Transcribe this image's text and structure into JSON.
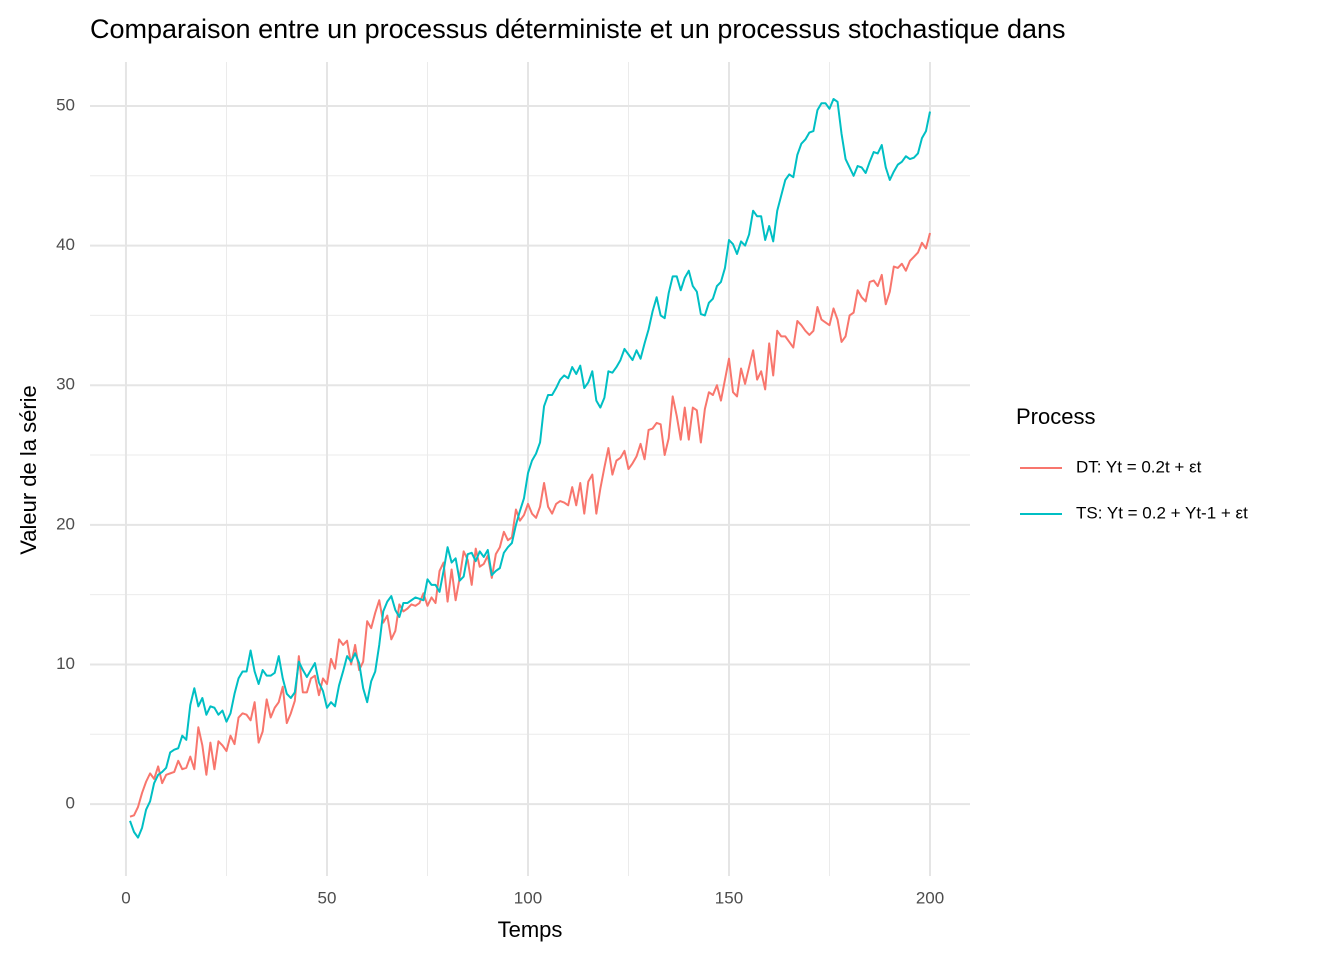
{
  "chart_data": {
    "type": "line",
    "title": "Comparaison entre un processus déterministe et un processus stochastique dans",
    "x_label": "Temps",
    "y_label": "Valeur de la série",
    "legend_title": "Process",
    "x": [
      1,
      2,
      3,
      4,
      5,
      6,
      7,
      8,
      9,
      10,
      11,
      12,
      13,
      14,
      15,
      16,
      17,
      18,
      19,
      20,
      21,
      22,
      23,
      24,
      25,
      26,
      27,
      28,
      29,
      30,
      31,
      32,
      33,
      34,
      35,
      36,
      37,
      38,
      39,
      40,
      41,
      42,
      43,
      44,
      45,
      46,
      47,
      48,
      49,
      50,
      51,
      52,
      53,
      54,
      55,
      56,
      57,
      58,
      59,
      60,
      61,
      62,
      63,
      64,
      65,
      66,
      67,
      68,
      69,
      70,
      71,
      72,
      73,
      74,
      75,
      76,
      77,
      78,
      79,
      80,
      81,
      82,
      83,
      84,
      85,
      86,
      87,
      88,
      89,
      90,
      91,
      92,
      93,
      94,
      95,
      96,
      97,
      98,
      99,
      100,
      101,
      102,
      103,
      104,
      105,
      106,
      107,
      108,
      109,
      110,
      111,
      112,
      113,
      114,
      115,
      116,
      117,
      118,
      119,
      120,
      121,
      122,
      123,
      124,
      125,
      126,
      127,
      128,
      129,
      130,
      131,
      132,
      133,
      134,
      135,
      136,
      137,
      138,
      139,
      140,
      141,
      142,
      143,
      144,
      145,
      146,
      147,
      148,
      149,
      150,
      151,
      152,
      153,
      154,
      155,
      156,
      157,
      158,
      159,
      160,
      161,
      162,
      163,
      164,
      165,
      166,
      167,
      168,
      169,
      170,
      171,
      172,
      173,
      174,
      175,
      176,
      177,
      178,
      179,
      180,
      181,
      182,
      183,
      184,
      185,
      186,
      187,
      188,
      189,
      190,
      191,
      192,
      193,
      194,
      195,
      196,
      197,
      198,
      199,
      200
    ],
    "series": [
      {
        "name": "DT: Yt = 0.2t + εt",
        "color": "#F8766D",
        "values": [
          -0.9,
          -0.8,
          -0.2,
          0.8,
          1.6,
          2.2,
          1.8,
          2.7,
          1.5,
          2.1,
          2.2,
          2.3,
          3.1,
          2.5,
          2.6,
          3.4,
          2.5,
          5.5,
          4.2,
          2.1,
          4.4,
          2.5,
          4.5,
          4.2,
          3.8,
          4.9,
          4.3,
          6.2,
          6.5,
          6.4,
          6.0,
          7.3,
          4.4,
          5.2,
          7.5,
          6.2,
          6.9,
          7.3,
          8.4,
          5.8,
          6.5,
          7.4,
          10.6,
          8.0,
          8.0,
          9.0,
          9.2,
          7.8,
          9.0,
          8.6,
          10.4,
          9.7,
          11.8,
          11.4,
          11.7,
          10.0,
          11.4,
          9.6,
          10.2,
          13.1,
          12.6,
          13.7,
          14.6,
          13.0,
          13.5,
          11.8,
          12.4,
          14.3,
          13.8,
          14.0,
          14.3,
          14.2,
          14.4,
          15.1,
          14.2,
          14.8,
          14.4,
          16.7,
          17.3,
          14.5,
          16.8,
          14.6,
          16.2,
          18.1,
          17.5,
          15.7,
          18.3,
          17.0,
          17.2,
          17.8,
          16.2,
          17.9,
          18.4,
          19.5,
          18.9,
          19.1,
          21.1,
          20.3,
          20.7,
          21.5,
          20.8,
          20.5,
          21.3,
          23.0,
          21.3,
          20.8,
          21.5,
          21.7,
          21.6,
          21.4,
          22.7,
          21.4,
          23.0,
          20.8,
          23.1,
          23.6,
          20.8,
          22.6,
          24.1,
          25.5,
          23.6,
          24.6,
          24.8,
          25.3,
          24.0,
          24.4,
          24.9,
          25.8,
          24.7,
          26.8,
          26.9,
          27.3,
          27.2,
          25.0,
          26.2,
          29.2,
          27.8,
          26.1,
          28.4,
          26.1,
          28.4,
          28.2,
          25.9,
          28.3,
          29.5,
          29.3,
          30.0,
          28.9,
          30.4,
          31.9,
          29.5,
          29.2,
          31.2,
          30.1,
          31.3,
          32.5,
          30.4,
          31.0,
          29.7,
          33.0,
          30.7,
          33.9,
          33.5,
          33.5,
          33.1,
          32.7,
          34.6,
          34.3,
          33.9,
          33.6,
          33.9,
          35.6,
          34.7,
          34.5,
          34.3,
          35.5,
          34.7,
          33.1,
          33.5,
          35.0,
          35.2,
          36.8,
          36.3,
          36.0,
          37.4,
          37.5,
          37.1,
          37.9,
          35.8,
          36.7,
          38.5,
          38.4,
          38.7,
          38.2,
          38.9,
          39.2,
          39.5,
          40.2,
          39.8,
          40.9
        ]
      },
      {
        "name": "TS: Yt = 0.2 + Yt-1 + εt",
        "color": "#00BFC4",
        "values": [
          -1.2,
          -2.0,
          -2.4,
          -1.7,
          -0.4,
          0.2,
          1.5,
          2.1,
          2.3,
          2.6,
          3.7,
          3.9,
          4.0,
          4.9,
          4.6,
          7.1,
          8.3,
          7.0,
          7.6,
          6.4,
          7.0,
          6.9,
          6.4,
          6.7,
          5.9,
          6.5,
          7.9,
          9.0,
          9.5,
          9.5,
          11.0,
          9.5,
          8.6,
          9.6,
          9.2,
          9.2,
          9.4,
          10.6,
          9.0,
          7.9,
          7.6,
          8.0,
          10.2,
          9.6,
          9.1,
          9.6,
          10.1,
          8.7,
          8.1,
          6.9,
          7.3,
          7.0,
          8.5,
          9.5,
          10.6,
          10.2,
          10.8,
          10.1,
          8.3,
          7.3,
          8.8,
          9.5,
          11.4,
          13.8,
          14.5,
          14.9,
          13.9,
          13.4,
          14.4,
          14.4,
          14.6,
          14.8,
          14.7,
          14.6,
          16.1,
          15.7,
          15.7,
          15.2,
          16.7,
          18.4,
          17.3,
          17.6,
          16.0,
          16.3,
          17.9,
          18.0,
          17.4,
          18.1,
          17.7,
          18.2,
          16.4,
          16.7,
          16.9,
          18.0,
          18.4,
          18.7,
          20.0,
          21.0,
          21.9,
          23.7,
          24.6,
          25.1,
          25.9,
          28.5,
          29.3,
          29.3,
          29.8,
          30.4,
          30.7,
          30.5,
          31.3,
          30.8,
          31.4,
          29.8,
          30.2,
          31.0,
          28.9,
          28.4,
          29.1,
          31.0,
          30.9,
          31.3,
          31.8,
          32.6,
          32.2,
          31.8,
          32.5,
          31.9,
          33.0,
          34.0,
          35.3,
          36.3,
          35.0,
          34.8,
          36.6,
          37.8,
          37.8,
          36.8,
          37.7,
          38.2,
          37.1,
          36.7,
          35.1,
          35.0,
          35.9,
          36.2,
          37.1,
          37.4,
          38.4,
          40.4,
          40.1,
          39.4,
          40.3,
          40.0,
          40.8,
          42.5,
          42.1,
          42.1,
          40.4,
          41.4,
          40.3,
          42.5,
          43.6,
          44.7,
          45.1,
          44.9,
          46.5,
          47.3,
          47.6,
          48.1,
          48.2,
          49.7,
          50.2,
          50.2,
          49.8,
          50.5,
          50.3,
          48.0,
          46.2,
          45.6,
          45.0,
          45.7,
          45.6,
          45.2,
          46.0,
          46.7,
          46.6,
          47.2,
          45.6,
          44.7,
          45.3,
          45.8,
          46.0,
          46.4,
          46.2,
          46.3,
          46.6,
          47.7,
          48.2,
          49.6
        ]
      }
    ],
    "xlim": [
      -8.95,
      209.95
    ],
    "xticks": [
      0,
      50,
      100,
      150,
      200
    ],
    "xminor": [
      25,
      75,
      125,
      175
    ],
    "ylim": [
      -5.15,
      53.15
    ],
    "yticks": [
      0,
      10,
      20,
      30,
      40,
      50
    ],
    "yminor": [
      5,
      15,
      25,
      35,
      45
    ],
    "grid": true
  }
}
